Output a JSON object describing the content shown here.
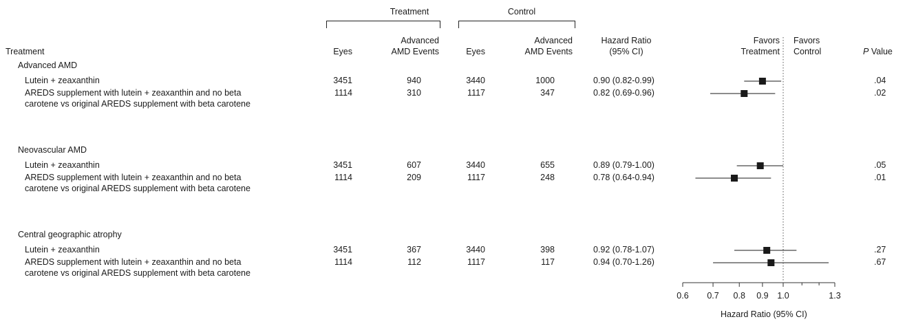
{
  "groups": {
    "treatment": "Treatment",
    "control": "Control"
  },
  "headers": {
    "treatment": "Treatment",
    "eyes_t": "Eyes",
    "events_t_line1": "Advanced",
    "events_t_line2": "AMD Events",
    "eyes_c": "Eyes",
    "events_c_line1": "Advanced",
    "events_c_line2": "AMD Events",
    "hr_line1": "Hazard Ratio",
    "hr_line2": "(95% CI)",
    "favors_t_line1": "Favors",
    "favors_t_line2": "Treatment",
    "favors_c_line1": "Favors",
    "favors_c_line2": "Control",
    "p_value_italic": "P",
    "p_value_rest": "Value"
  },
  "sections": [
    {
      "title": "Advanced AMD",
      "rows": [
        {
          "label": [
            "Lutein + zeaxanthin"
          ],
          "eyes_t": "3451",
          "events_t": "940",
          "eyes_c": "3440",
          "events_c": "1000",
          "hr_text": "0.90 (0.82-0.99)",
          "p": ".04"
        },
        {
          "label": [
            "AREDS supplement with lutein + zeaxanthin and no beta",
            "carotene vs original AREDS supplement with beta carotene"
          ],
          "eyes_t": "1114",
          "events_t": "310",
          "eyes_c": "1117",
          "events_c": "347",
          "hr_text": "0.82 (0.69-0.96)",
          "p": ".02"
        }
      ]
    },
    {
      "title": "Neovascular AMD",
      "rows": [
        {
          "label": [
            "Lutein + zeaxanthin"
          ],
          "eyes_t": "3451",
          "events_t": "607",
          "eyes_c": "3440",
          "events_c": "655",
          "hr_text": "0.89 (0.79-1.00)",
          "p": ".05"
        },
        {
          "label": [
            "AREDS supplement with lutein + zeaxanthin and no beta",
            "carotene vs original AREDS supplement with beta carotene"
          ],
          "eyes_t": "1114",
          "events_t": "209",
          "eyes_c": "1117",
          "events_c": "248",
          "hr_text": "0.78 (0.64-0.94)",
          "p": ".01"
        }
      ]
    },
    {
      "title": "Central geographic atrophy",
      "rows": [
        {
          "label": [
            "Lutein + zeaxanthin"
          ],
          "eyes_t": "3451",
          "events_t": "367",
          "eyes_c": "3440",
          "events_c": "398",
          "hr_text": "0.92 (0.78-1.07)",
          "p": ".27"
        },
        {
          "label": [
            "AREDS supplement with lutein + zeaxanthin and no beta",
            "carotene vs original AREDS supplement with beta carotene"
          ],
          "eyes_t": "1114",
          "events_t": "112",
          "eyes_c": "1117",
          "events_c": "117",
          "hr_text": "0.94 (0.70-1.26)",
          "p": ".67"
        }
      ]
    }
  ],
  "chart_data": {
    "type": "scatter",
    "subtype": "forest-plot",
    "xlabel": "Hazard Ratio (95% CI)",
    "xscale": "log",
    "xlim": [
      0.6,
      1.3
    ],
    "xticks": [
      0.6,
      0.7,
      0.8,
      0.9,
      1.0,
      1.3
    ],
    "xtick_labels": [
      "0.6",
      "0.7",
      "0.8",
      "0.9",
      "1.0",
      "1.3"
    ],
    "minor_ticks": [
      1.1,
      1.2
    ],
    "reference_line": 1.0,
    "points": [
      {
        "hr": 0.9,
        "lo": 0.82,
        "hi": 0.99
      },
      {
        "hr": 0.82,
        "lo": 0.69,
        "hi": 0.96
      },
      {
        "hr": 0.89,
        "lo": 0.79,
        "hi": 1.0
      },
      {
        "hr": 0.78,
        "lo": 0.64,
        "hi": 0.94
      },
      {
        "hr": 0.92,
        "lo": 0.78,
        "hi": 1.07
      },
      {
        "hr": 0.94,
        "lo": 0.7,
        "hi": 1.26
      }
    ],
    "colors": {
      "marker": "#1a1a1a",
      "ref_line": "#555555"
    }
  }
}
